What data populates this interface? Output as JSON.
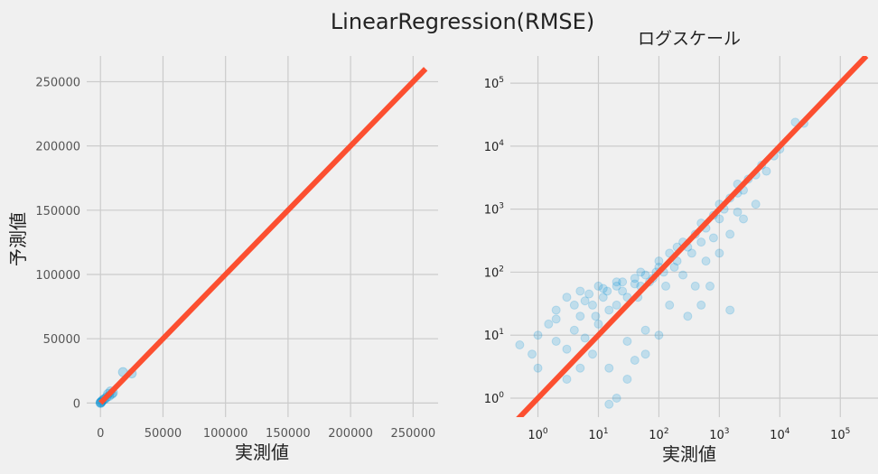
{
  "figure": {
    "title": "LinearRegression(RMSE)",
    "background": "#f0f0f0",
    "point_color": "#008fd5",
    "line_color": "#fc4f30",
    "grid_color": "#cbcbcb"
  },
  "chart_data": [
    {
      "type": "scatter",
      "title": "",
      "xlabel": "実測値",
      "ylabel": "予測値",
      "xscale": "linear",
      "yscale": "linear",
      "xlim": [
        -11000,
        270000
      ],
      "ylim": [
        -11000,
        270000
      ],
      "xticks": [
        0,
        50000,
        100000,
        150000,
        200000,
        250000
      ],
      "yticks": [
        0,
        50000,
        100000,
        150000,
        200000,
        250000
      ],
      "xtick_labels": [
        "0",
        "50000",
        "100000",
        "150000",
        "200000",
        "250000"
      ],
      "ytick_labels": [
        "0",
        "50000",
        "100000",
        "150000",
        "200000",
        "250000"
      ],
      "grid": true,
      "reference_line": {
        "x": [
          0,
          260000
        ],
        "y": [
          0,
          260000
        ]
      },
      "points": {
        "x": [
          20,
          100,
          300,
          800,
          1500,
          2500,
          3500,
          5000,
          6000,
          7000,
          8000,
          9000,
          10000,
          18000,
          25000
        ],
        "y": [
          60,
          150,
          500,
          1000,
          1800,
          2700,
          3200,
          4500,
          7000,
          5500,
          9000,
          7000,
          8000,
          24000,
          23000
        ]
      }
    },
    {
      "type": "scatter",
      "title": "ログスケール",
      "xlabel": "実測値",
      "ylabel": "",
      "xscale": "log",
      "yscale": "log",
      "xlim": [
        0.35,
        420000
      ],
      "ylim": [
        0.5,
        270000
      ],
      "xticks": [
        1,
        10,
        100,
        1000,
        10000,
        100000
      ],
      "yticks": [
        1,
        10,
        100,
        1000,
        10000,
        100000
      ],
      "xtick_labels": [
        "10",
        "10",
        "10",
        "10",
        "10",
        "10"
      ],
      "xtick_exponents": [
        "0",
        "1",
        "2",
        "3",
        "4",
        "5"
      ],
      "ytick_labels": [
        "10",
        "10",
        "10",
        "10",
        "10",
        "10"
      ],
      "ytick_exponents": [
        "0",
        "1",
        "2",
        "3",
        "4",
        "5"
      ],
      "grid": true,
      "reference_line": {
        "x": [
          0.4,
          270000
        ],
        "y": [
          0.4,
          270000
        ]
      },
      "point_alpha": 0.2,
      "points": {
        "x": [
          0.5,
          0.8,
          1,
          1,
          1.5,
          2,
          2,
          3,
          3,
          4,
          5,
          5,
          6,
          8,
          10,
          10,
          12,
          15,
          20,
          20,
          25,
          30,
          40,
          50,
          50,
          60,
          80,
          100,
          100,
          120,
          150,
          200,
          200,
          250,
          300,
          400,
          500,
          500,
          600,
          800,
          1000,
          1000,
          1200,
          1500,
          2000,
          2000,
          2500,
          3000,
          4000,
          5000,
          6000,
          8000,
          10000,
          18000,
          25000,
          3,
          5,
          8,
          15,
          30,
          60,
          150,
          400,
          1000,
          2500,
          7,
          12,
          20,
          40,
          70,
          130,
          250,
          600,
          1500,
          4000,
          2,
          4,
          6,
          9,
          14,
          25,
          45,
          90,
          180,
          350,
          800,
          2000,
          300,
          500,
          700,
          1500,
          20,
          30,
          15,
          60,
          100,
          40
        ],
        "y": [
          7,
          5,
          10,
          3,
          15,
          8,
          25,
          6,
          40,
          12,
          20,
          50,
          9,
          30,
          15,
          60,
          40,
          25,
          70,
          30,
          50,
          40,
          80,
          60,
          100,
          90,
          80,
          120,
          150,
          100,
          200,
          150,
          250,
          300,
          250,
          400,
          300,
          600,
          500,
          800,
          700,
          1200,
          1000,
          1500,
          1800,
          2500,
          2000,
          3000,
          3500,
          5000,
          4000,
          7000,
          9000,
          24000,
          23000,
          2,
          3,
          5,
          3,
          8,
          12,
          30,
          60,
          200,
          700,
          45,
          55,
          60,
          65,
          70,
          60,
          90,
          150,
          400,
          1200,
          18,
          30,
          35,
          20,
          50,
          70,
          40,
          100,
          120,
          200,
          350,
          900,
          20,
          30,
          60,
          25,
          1,
          2,
          0.8,
          5,
          10,
          4
        ]
      }
    }
  ]
}
